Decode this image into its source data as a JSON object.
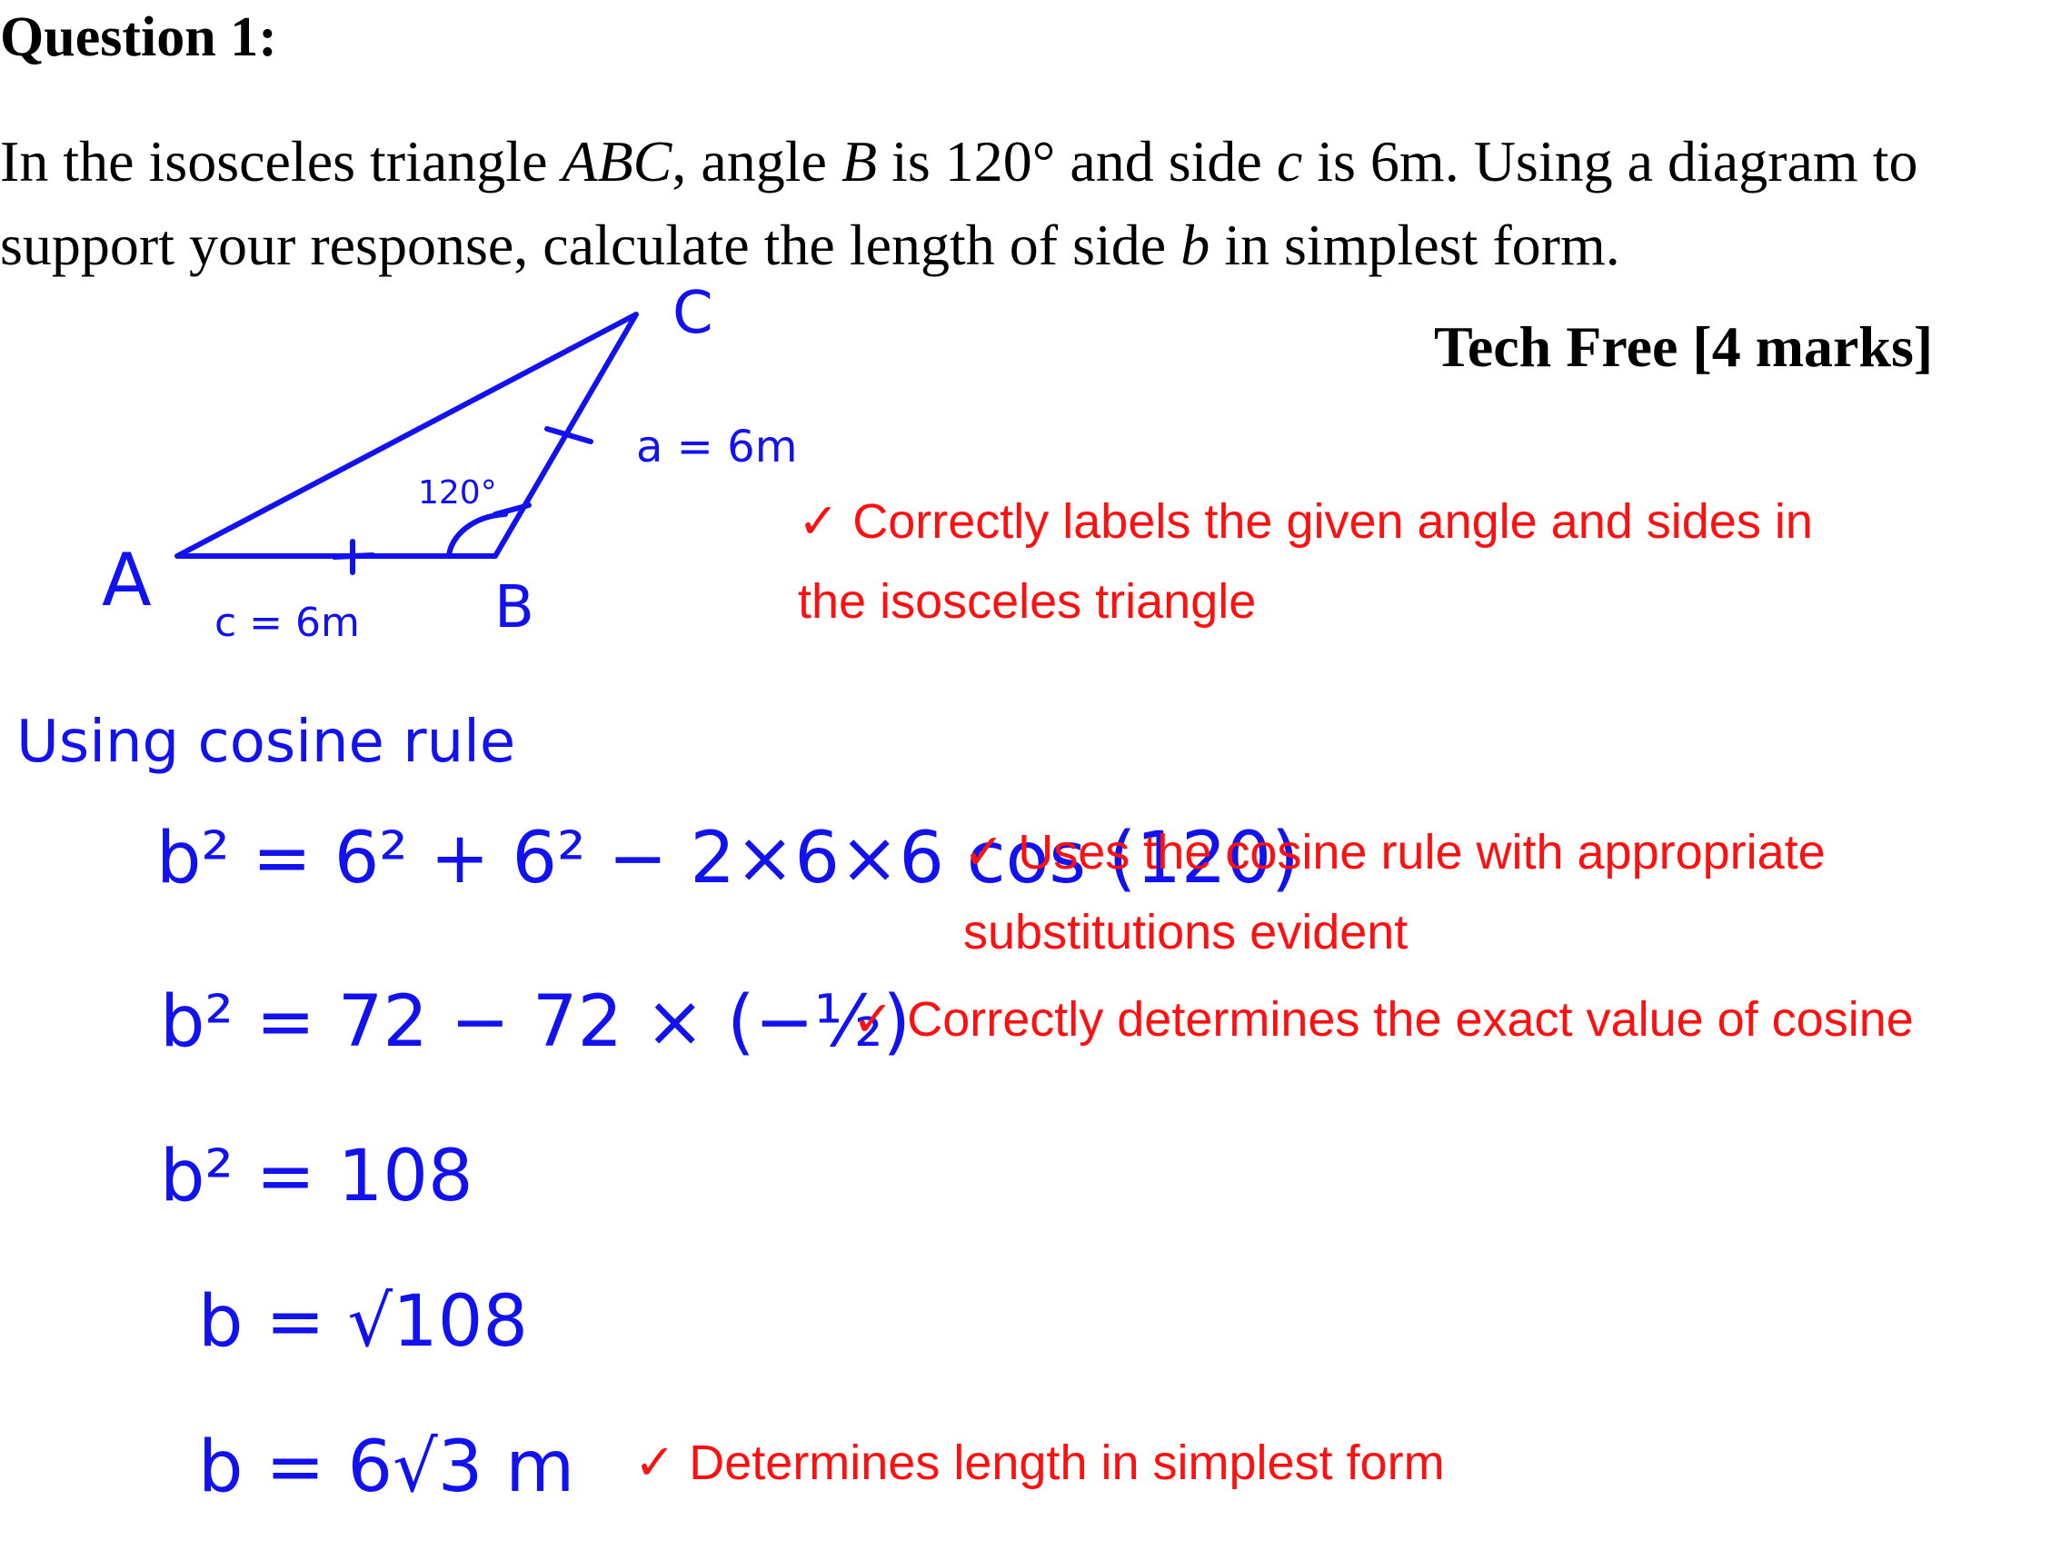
{
  "question": {
    "title": "Question 1:",
    "body_parts": [
      "In the isosceles triangle ",
      "ABC",
      ", angle ",
      "B",
      " is 120° and side ",
      "c",
      " is 6m. Using a diagram to support your response, calculate the length of side ",
      "b",
      " in simplest form."
    ],
    "marks_label": "Tech Free [4 marks]"
  },
  "diagram": {
    "vertex_a": "A",
    "vertex_b": "B",
    "vertex_c": "C",
    "side_c_label": "c = 6m",
    "side_a_label": "a = 6m",
    "angle_b_label": "120°",
    "line_color": "#1212f0"
  },
  "working": {
    "method": "Using cosine rule",
    "steps": [
      "b² = 6² + 6² − 2×6×6 cos (120)",
      "b² = 72 − 72 × (−½)",
      "b² = 108",
      "b = √108",
      "b = 6√3 m"
    ]
  },
  "marking": [
    "✓ Correctly labels the given angle and sides in the isosceles triangle",
    "✓ Uses the cosine rule with appropriate substitutions evident",
    "✓ Correctly determines the exact value of cosine",
    "✓ Determines length in simplest form"
  ],
  "colors": {
    "handwriting": "#1212f0",
    "marking": "#ff1010",
    "text": "#000000"
  }
}
